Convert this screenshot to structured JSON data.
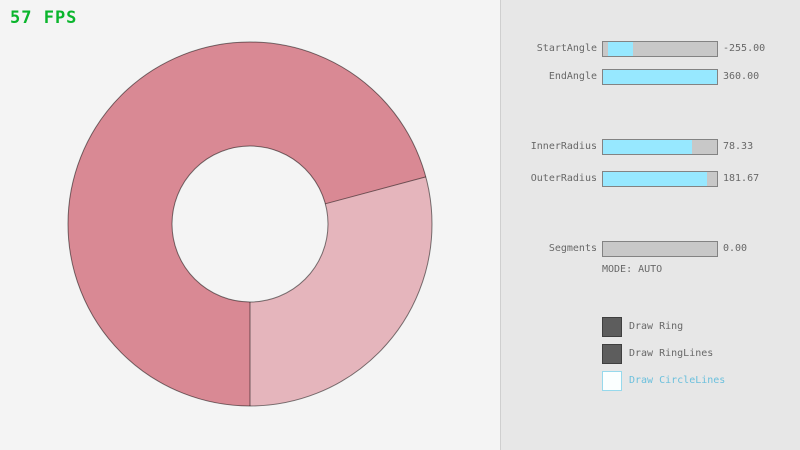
{
  "fps": {
    "text": "57 FPS",
    "color": "#0ab52c"
  },
  "ring": {
    "colors": {
      "dark": "#d98994",
      "light": "#e5b5bc",
      "outline": "rgba(0,0,0,0.5)"
    }
  },
  "panel": {
    "background": "#e7e7e7",
    "accent_color": "#97e8ff",
    "sliders": [
      {
        "label": "StartAngle",
        "value": "-255.00",
        "fill_start_pct": 4,
        "fill_end_pct": 26
      },
      {
        "label": "EndAngle",
        "value": "360.00",
        "fill_start_pct": 0,
        "fill_end_pct": 100
      },
      {
        "label": "InnerRadius",
        "value": "78.33",
        "fill_start_pct": 0,
        "fill_end_pct": 78
      },
      {
        "label": "OuterRadius",
        "value": "181.67",
        "fill_start_pct": 0,
        "fill_end_pct": 91
      },
      {
        "label": "Segments",
        "value": "0.00",
        "fill_start_pct": 0,
        "fill_end_pct": 0
      }
    ],
    "mode_text": "MODE: AUTO",
    "checkboxes": [
      {
        "label": "Draw Ring",
        "checked": true,
        "label_color": "#686868"
      },
      {
        "label": "Draw RingLines",
        "checked": true,
        "label_color": "#686868"
      },
      {
        "label": "Draw CircleLines",
        "checked": false,
        "label_color": "#6cc0dd"
      }
    ]
  }
}
